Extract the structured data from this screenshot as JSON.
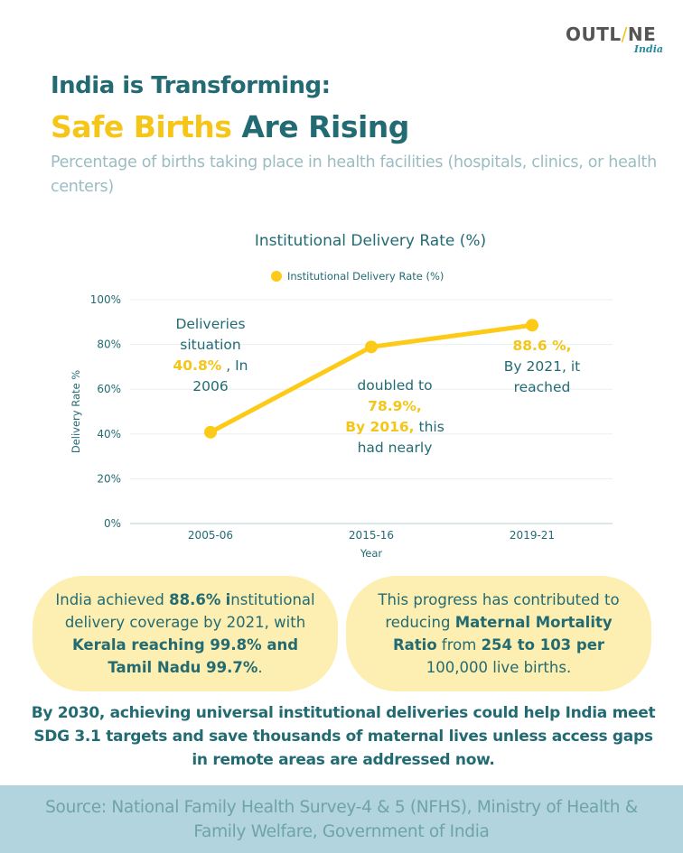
{
  "brand": {
    "logo_left": "OUTL",
    "logo_slash": "/",
    "logo_right": "NE",
    "logo_sub": "India",
    "accent_color": "#f5c518",
    "primary_color": "#236b73"
  },
  "header": {
    "title_line1": "India is Transforming:",
    "title_highlight": "Safe Births",
    "title_rest": " Are Rising",
    "subtitle": "Percentage of births taking place in health facilities (hospitals, clinics, or health centers)"
  },
  "chart_data": {
    "type": "line",
    "title": "Institutional Delivery Rate (%)",
    "legend": [
      "Institutional Delivery Rate (%)"
    ],
    "legend_position": "top-center",
    "categories": [
      "2005-06",
      "2015-16",
      "2019-21"
    ],
    "series": [
      {
        "name": "Institutional Delivery Rate (%)",
        "values": [
          40.8,
          78.9,
          88.6
        ],
        "color": "#fcca17"
      }
    ],
    "xlabel": "Year",
    "ylabel": "Delivery Rate %",
    "ylim": [
      0,
      100
    ],
    "yticks": [
      0,
      20,
      40,
      60,
      80,
      100
    ],
    "ytick_labels": [
      "0%",
      "20%",
      "40%",
      "60%",
      "80%",
      "100%"
    ],
    "grid": true,
    "annotations": [
      {
        "lines": [
          [
            "Deliveries",
            ""
          ],
          [
            "situation",
            ""
          ],
          [
            "",
            "40.8%",
            " , In"
          ],
          [
            "2006",
            ""
          ]
        ]
      },
      {
        "lines": [
          [
            "doubled to"
          ],
          [
            "78.9%,"
          ],
          [
            "By 2016,",
            " this"
          ],
          [
            "had nearly"
          ]
        ]
      },
      {
        "lines": [
          [
            "88.6 %,"
          ],
          [
            "By 2021, it"
          ],
          [
            "reached"
          ]
        ]
      }
    ]
  },
  "annotations": {
    "a1": {
      "l1": "Deliveries",
      "l2": "situation",
      "l3_hl": "40.8%",
      "l3_rest": " , In",
      "l4": "2006"
    },
    "a2": {
      "l1": "doubled to",
      "l2_hl": "78.9%,",
      "l3_hl": "By 2016,",
      "l3_rest": " this",
      "l4": "had nearly"
    },
    "a3": {
      "l1_hl": "88.6 %,",
      "l2": "By 2021, it",
      "l3": "reached"
    }
  },
  "facts": {
    "left": {
      "t1": "India achieved ",
      "b1": "88.6%",
      "b2": "i",
      "t2": "nstitutional delivery coverage by 2021, with ",
      "b3": "Kerala reaching 99.8% and Tamil Nadu 99.7%",
      "t3": "."
    },
    "right": {
      "t1": "This progress has contributed to reducing ",
      "b1": "Maternal Mortality Ratio",
      "t2": " from ",
      "b2": "254 to 103 per",
      "t3": " 100,000 live births."
    }
  },
  "closing": "By 2030, achieving universal institutional deliveries could help India meet SDG 3.1 targets and save thousands of maternal lives unless access gaps in remote areas are addressed now.",
  "footer": {
    "source": "Source: National Family Health Survey-4 & 5 (NFHS), Ministry of Health & Family Welfare, Government of India"
  }
}
